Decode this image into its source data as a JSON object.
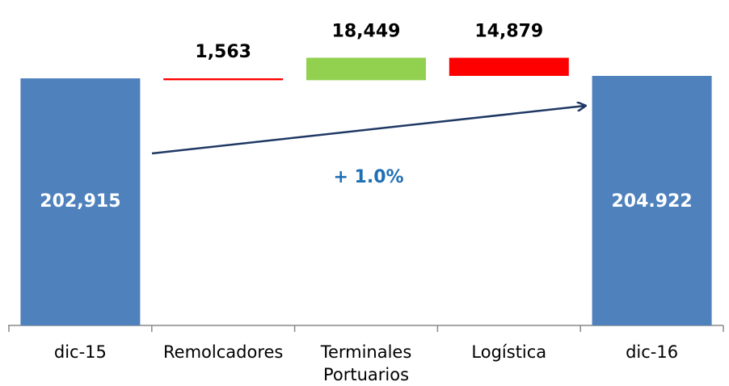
{
  "chart_data": {
    "type": "waterfall",
    "categories": [
      "dic-15",
      "Remolcadores",
      "Terminales Portuarios",
      "Logística",
      "dic-16"
    ],
    "values": [
      202915,
      -1563,
      18449,
      -14879,
      204922
    ],
    "value_labels": [
      "202,915",
      "1,563",
      "18,449",
      "14,879",
      "204.922"
    ],
    "colors": [
      "#4f81bd",
      "#ff0000",
      "#92d050",
      "#ff0000",
      "#4f81bd"
    ],
    "ylim": [
      0,
      267235
    ],
    "annotation": "+ 1.0%"
  }
}
